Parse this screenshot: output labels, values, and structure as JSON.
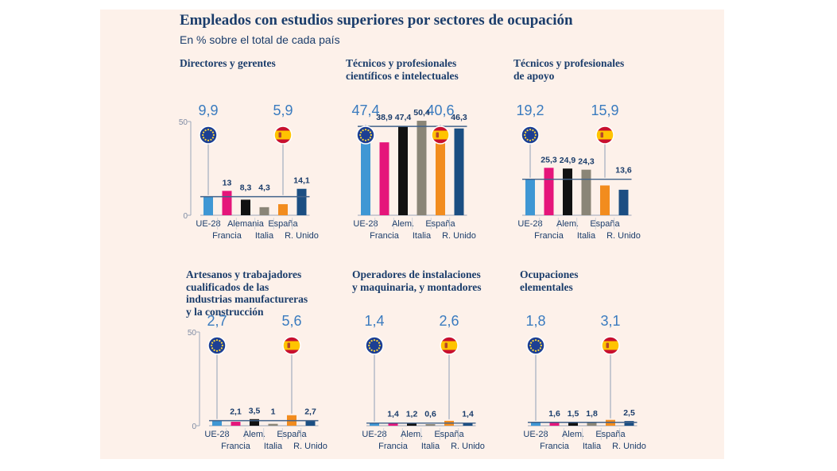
{
  "title": "Empleados con estudios superiores por sectores de ocupación",
  "subtitle": "En % sobre el total de cada país",
  "colors": {
    "background": "#fdf1ea",
    "title": "#1b3d6b",
    "ue": "#3f97d4",
    "francia": "#e5157a",
    "alemania": "#111111",
    "italia": "#8a8577",
    "espana": "#f28c1e",
    "reino_unido": "#1b4e82",
    "reference_line": "#41628a",
    "value_text": "#1b3d6b"
  },
  "icons": [
    "eu-flag-icon",
    "spain-flag-icon"
  ],
  "chart_data": [
    {
      "type": "bar",
      "title_lines": [
        "Directores y gerentes"
      ],
      "categories": [
        "UE-28",
        "Francia",
        "Alemania",
        "Italia",
        "España",
        "R. Unido"
      ],
      "values": [
        9.9,
        13,
        8.3,
        4.3,
        5.9,
        14.1
      ],
      "value_labels": [
        "9,9",
        "13",
        "8,3",
        "4,3",
        "5,9",
        "14,1"
      ],
      "ylim": [
        0,
        50
      ],
      "yticks": [
        "50",
        "0"
      ],
      "highlight": {
        "ue_value": "9,9",
        "espana_value": "5,9"
      },
      "reference_line_value": 9.9
    },
    {
      "type": "bar",
      "title_lines": [
        "Técnicos y profesionales",
        "científicos e intelectuales"
      ],
      "categories": [
        "UE-28",
        "Francia",
        "Alem.",
        "Italia",
        "España",
        "R. Unido"
      ],
      "values": [
        47.4,
        38.9,
        47.4,
        50.4,
        40.6,
        46.3
      ],
      "value_labels": [
        "47,4",
        "38,9",
        "47,4",
        "50,4",
        "40,6",
        "46,3"
      ],
      "ylim": [
        0,
        50
      ],
      "highlight": {
        "ue_value": "47,4",
        "espana_value": "40,6"
      },
      "reference_line_value": 47.4
    },
    {
      "type": "bar",
      "title_lines": [
        "Técnicos y profesionales",
        "de apoyo"
      ],
      "categories": [
        "UE-28",
        "Francia",
        "Alem.",
        "Italia",
        "España",
        "R. Unido"
      ],
      "values": [
        19.2,
        25.3,
        24.9,
        24.3,
        15.9,
        13.6
      ],
      "value_labels": [
        "19,2",
        "25,3",
        "24,9",
        "24,3",
        "15,9",
        "13,6"
      ],
      "ylim": [
        0,
        50
      ],
      "highlight": {
        "ue_value": "19,2",
        "espana_value": "15,9"
      },
      "reference_line_value": 19.2
    },
    {
      "type": "bar",
      "title_lines": [
        "Artesanos y trabajadores",
        "cualificados de las",
        "industrias manufactureras",
        "y la construcción"
      ],
      "categories": [
        "UE-28",
        "Francia",
        "Alem.",
        "Italia",
        "España",
        "R. Unido"
      ],
      "values": [
        2.7,
        2.1,
        3.5,
        1,
        5.6,
        2.7
      ],
      "value_labels": [
        "2,7",
        "2,1",
        "3,5",
        "1",
        "5,6",
        "2,7"
      ],
      "ylim": [
        0,
        50
      ],
      "yticks": [
        "50",
        "0"
      ],
      "highlight": {
        "ue_value": "2,7",
        "espana_value": "5,6"
      },
      "reference_line_value": 2.7
    },
    {
      "type": "bar",
      "title_lines": [
        "Operadores de instalaciones",
        "y maquinaria, y montadores"
      ],
      "categories": [
        "UE-28",
        "Francia",
        "Alem.",
        "Italia",
        "España",
        "R. Unido"
      ],
      "values": [
        1.4,
        1.4,
        1.2,
        0.6,
        2.6,
        1.4
      ],
      "value_labels": [
        "1,4",
        "1,4",
        "1,2",
        "0,6",
        "2,6",
        "1,4"
      ],
      "ylim": [
        0,
        50
      ],
      "highlight": {
        "ue_value": "1,4",
        "espana_value": "2,6"
      },
      "reference_line_value": 1.4
    },
    {
      "type": "bar",
      "title_lines": [
        "Ocupaciones",
        "elementales"
      ],
      "categories": [
        "UE-28",
        "Francia",
        "Alem.",
        "Italia",
        "España",
        "R. Unido"
      ],
      "values": [
        1.8,
        1.6,
        1.5,
        1.8,
        3.1,
        2.5
      ],
      "value_labels": [
        "1,8",
        "1,6",
        "1,5",
        "1,8",
        "3,1",
        "2,5"
      ],
      "ylim": [
        0,
        50
      ],
      "highlight": {
        "ue_value": "1,8",
        "espana_value": "3,1"
      },
      "reference_line_value": 1.8
    }
  ]
}
